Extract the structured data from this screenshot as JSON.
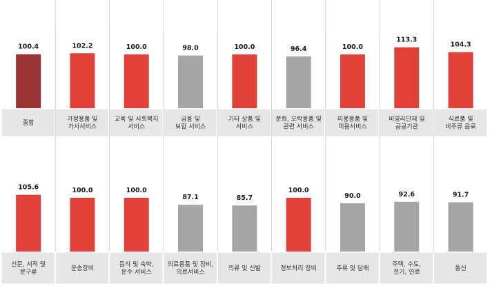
{
  "chart_data": [
    {
      "type": "bar",
      "categories": [
        [
          "종합"
        ],
        [
          "가정용품 및",
          "가사서비스"
        ],
        [
          "교육 및 사회복지",
          "서비스"
        ],
        [
          "금융 및",
          "보험 서비스"
        ],
        [
          "기타 상품 및",
          "서비스"
        ],
        [
          "문화, 오락용품 및",
          "관련 서비스"
        ],
        [
          "미용용품 및",
          "미용서비스"
        ],
        [
          "비영리단체 및",
          "공공기관"
        ],
        [
          "식료품 및",
          "비주류 음료"
        ]
      ],
      "values": [
        100.4,
        102.2,
        100.0,
        98.0,
        100.0,
        96.4,
        100.0,
        113.3,
        104.3
      ],
      "value_labels": [
        "100.4",
        "102.2",
        "100.0",
        "98.0",
        "100.0",
        "96.4",
        "100.0",
        "113.3",
        "104.3"
      ],
      "bar_colors": [
        "#9b3434",
        "#e04239",
        "#e04239",
        "#a6a6a6",
        "#e04239",
        "#a6a6a6",
        "#e04239",
        "#e04239",
        "#e04239"
      ],
      "ylim": [
        0,
        130
      ],
      "grid": false
    },
    {
      "type": "bar",
      "categories": [
        [
          "신문, 서적 및",
          "문구류"
        ],
        [
          "운송장비"
        ],
        [
          "음식 및 숙박,",
          "운수 서비스"
        ],
        [
          "의료용품 및 장비,",
          "의료서비스"
        ],
        [
          "의류 및 신발"
        ],
        [
          "정보처리 장비"
        ],
        [
          "주류 및 담배"
        ],
        [
          "주택, 수도,",
          "전기, 연료"
        ],
        [
          "통신"
        ]
      ],
      "values": [
        105.6,
        100.0,
        100.0,
        87.1,
        85.7,
        100.0,
        90.0,
        92.6,
        91.7
      ],
      "value_labels": [
        "105.6",
        "100.0",
        "100.0",
        "87.1",
        "85.7",
        "100.0",
        "90.0",
        "92.6",
        "91.7"
      ],
      "bar_colors": [
        "#e04239",
        "#e04239",
        "#e04239",
        "#a6a6a6",
        "#a6a6a6",
        "#e04239",
        "#a6a6a6",
        "#a6a6a6",
        "#a6a6a6"
      ],
      "ylim": [
        0,
        130
      ],
      "grid": false
    }
  ],
  "colors": {
    "label_box": "#e6e6e6",
    "label_border": "#ffffff",
    "separator": "#d6d6d6"
  }
}
